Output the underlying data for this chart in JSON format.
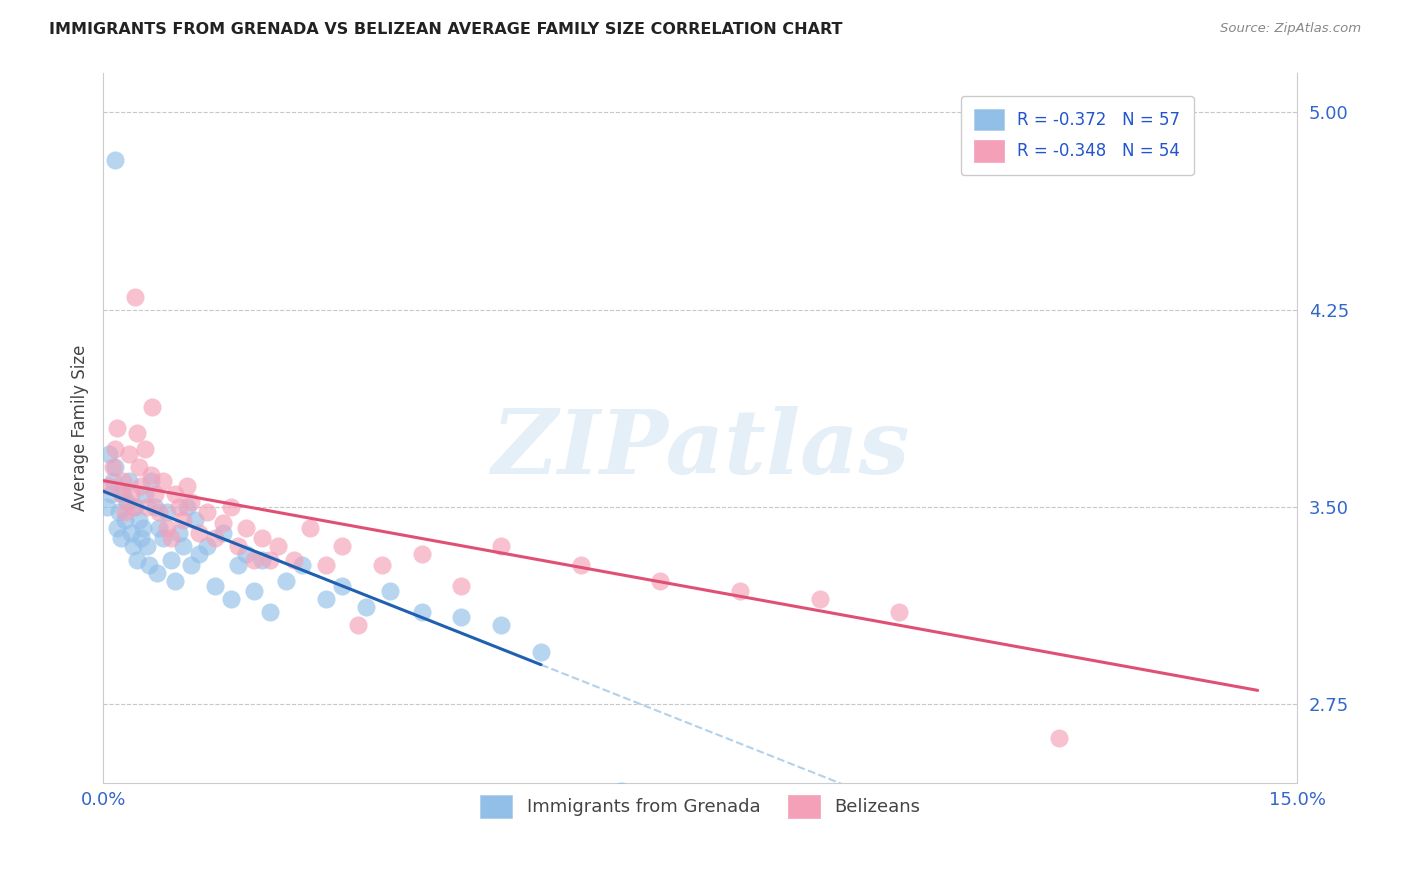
{
  "title": "IMMIGRANTS FROM GRENADA VS BELIZEAN AVERAGE FAMILY SIZE CORRELATION CHART",
  "source": "Source: ZipAtlas.com",
  "ylabel": "Average Family Size",
  "xmin": 0.0,
  "xmax": 15.0,
  "ymin": 2.45,
  "ymax": 5.15,
  "yticks_right": [
    2.75,
    3.5,
    4.25,
    5.0
  ],
  "background_color": "#ffffff",
  "grid_color": "#c8c8c8",
  "grenada_color": "#92bfe8",
  "belize_color": "#f4a0b8",
  "grenada_line_color": "#2060b0",
  "belize_line_color": "#e05075",
  "grenada_line_start_y": 3.56,
  "grenada_line_slope": -0.12,
  "belize_line_start_y": 3.6,
  "belize_line_slope": -0.055,
  "grenada_solid_end_x": 5.5,
  "belize_solid_end_x": 14.5,
  "watermark_text": "ZIPatlas",
  "legend_label_grenada": "R = -0.372   N = 57",
  "legend_label_belize": "R = -0.348   N = 54",
  "legend_bottom_grenada": "Immigrants from Grenada",
  "legend_bottom_belize": "Belizeans",
  "grenada_x": [
    0.05,
    0.08,
    0.1,
    0.12,
    0.15,
    0.18,
    0.2,
    0.22,
    0.25,
    0.28,
    0.3,
    0.32,
    0.35,
    0.38,
    0.4,
    0.42,
    0.45,
    0.48,
    0.5,
    0.52,
    0.55,
    0.58,
    0.6,
    0.65,
    0.68,
    0.7,
    0.75,
    0.8,
    0.85,
    0.9,
    0.95,
    1.0,
    1.05,
    1.1,
    1.15,
    1.2,
    1.3,
    1.4,
    1.5,
    1.6,
    1.7,
    1.8,
    1.9,
    2.0,
    2.1,
    2.3,
    2.5,
    2.8,
    3.0,
    3.3,
    3.6,
    4.0,
    4.5,
    5.0,
    5.5,
    0.15,
    6.5
  ],
  "grenada_y": [
    3.5,
    3.7,
    3.55,
    3.6,
    3.65,
    3.42,
    3.48,
    3.38,
    3.55,
    3.45,
    3.52,
    3.6,
    3.4,
    3.35,
    3.5,
    3.3,
    3.45,
    3.38,
    3.42,
    3.55,
    3.35,
    3.28,
    3.6,
    3.5,
    3.25,
    3.42,
    3.38,
    3.48,
    3.3,
    3.22,
    3.4,
    3.35,
    3.5,
    3.28,
    3.45,
    3.32,
    3.35,
    3.2,
    3.4,
    3.15,
    3.28,
    3.32,
    3.18,
    3.3,
    3.1,
    3.22,
    3.28,
    3.15,
    3.2,
    3.12,
    3.18,
    3.1,
    3.08,
    3.05,
    2.95,
    4.82,
    2.42
  ],
  "belize_x": [
    0.08,
    0.12,
    0.15,
    0.18,
    0.22,
    0.25,
    0.28,
    0.32,
    0.35,
    0.38,
    0.42,
    0.45,
    0.48,
    0.52,
    0.55,
    0.6,
    0.65,
    0.7,
    0.75,
    0.8,
    0.85,
    0.9,
    0.95,
    1.0,
    1.1,
    1.2,
    1.3,
    1.4,
    1.5,
    1.6,
    1.7,
    1.8,
    1.9,
    2.0,
    2.2,
    2.4,
    2.6,
    2.8,
    3.0,
    3.5,
    4.0,
    4.5,
    5.0,
    6.0,
    7.0,
    8.0,
    9.0,
    10.0,
    0.4,
    0.62,
    1.05,
    2.1,
    3.2,
    12.0
  ],
  "belize_y": [
    3.58,
    3.65,
    3.72,
    3.8,
    3.55,
    3.6,
    3.48,
    3.7,
    3.55,
    3.5,
    3.78,
    3.65,
    3.58,
    3.72,
    3.5,
    3.62,
    3.55,
    3.48,
    3.6,
    3.42,
    3.38,
    3.55,
    3.5,
    3.45,
    3.52,
    3.4,
    3.48,
    3.38,
    3.44,
    3.5,
    3.35,
    3.42,
    3.3,
    3.38,
    3.35,
    3.3,
    3.42,
    3.28,
    3.35,
    3.28,
    3.32,
    3.2,
    3.35,
    3.28,
    3.22,
    3.18,
    3.15,
    3.1,
    4.3,
    3.88,
    3.58,
    3.3,
    3.05,
    2.62
  ]
}
